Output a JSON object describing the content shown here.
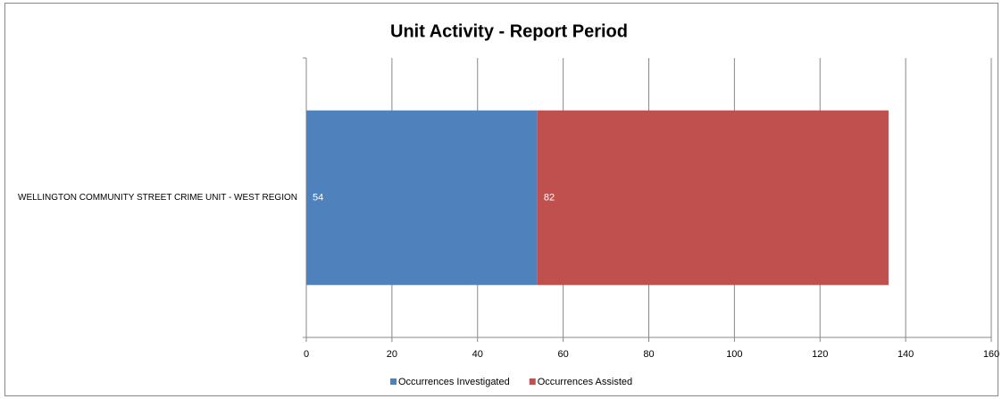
{
  "chart_data": {
    "type": "bar",
    "orientation": "horizontal",
    "stacked": true,
    "title": "Unit Activity - Report Period",
    "categories": [
      "WELLINGTON COMMUNITY STREET CRIME UNIT - WEST REGION"
    ],
    "series": [
      {
        "name": "Occurrences Investigated",
        "color": "#4f81bd",
        "values": [
          54
        ]
      },
      {
        "name": "Occurrences Assisted",
        "color": "#c0504d",
        "values": [
          82
        ]
      }
    ],
    "xlim": [
      0,
      160
    ],
    "xticks": [
      0,
      20,
      40,
      60,
      80,
      100,
      120,
      140,
      160
    ],
    "grid": true,
    "legend": "bottom"
  }
}
